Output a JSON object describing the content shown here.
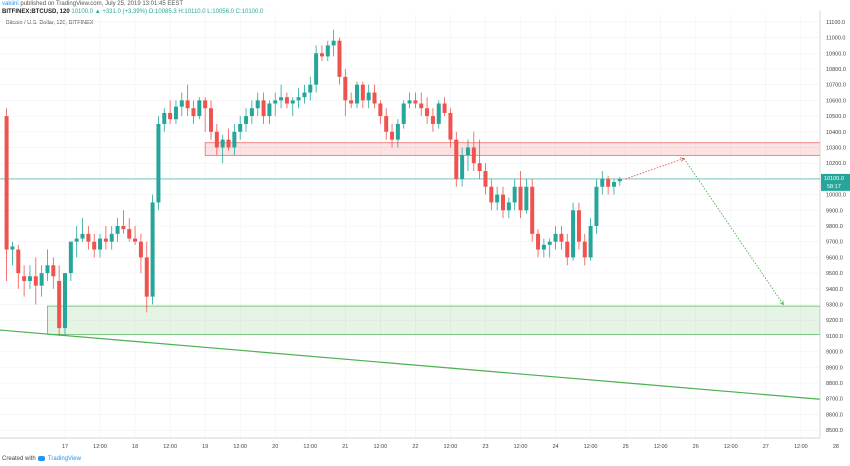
{
  "header": {
    "author": "vakiini",
    "published": "published on TradingView.com, July 25, 2019 13:01:45 EEST",
    "symbol": "BITFINEX:BTCUSD, 120",
    "ohlc": "10100.0 ▲ +331.0 (+3.39%) O:10085.3 H:10110.0 L:10056.0 C:10100.0"
  },
  "footer": {
    "created_with": "Created with",
    "brand": "TradingView"
  },
  "chart_data": {
    "type": "candlestick",
    "title": "Bitcoin / U.S. Dollar, 120, BITFINEX",
    "ylim": [
      8450,
      11150
    ],
    "y_ticks": [
      8500,
      8600,
      8700,
      8800,
      8900,
      9000,
      9100,
      9200,
      9300,
      9400,
      9500,
      9600,
      9700,
      9800,
      9900,
      10000,
      10100,
      10200,
      10300,
      10400,
      10500,
      10600,
      10700,
      10800,
      10900,
      11000,
      11100
    ],
    "x_ticks": [
      {
        "label": "17",
        "t": 10
      },
      {
        "label": "12:00",
        "t": 16
      },
      {
        "label": "18",
        "t": 22
      },
      {
        "label": "12:00",
        "t": 28
      },
      {
        "label": "19",
        "t": 34
      },
      {
        "label": "12:00",
        "t": 40
      },
      {
        "label": "20",
        "t": 46
      },
      {
        "label": "12:00",
        "t": 52
      },
      {
        "label": "21",
        "t": 58
      },
      {
        "label": "12:00",
        "t": 64
      },
      {
        "label": "22",
        "t": 70
      },
      {
        "label": "12:00",
        "t": 76
      },
      {
        "label": "23",
        "t": 82
      },
      {
        "label": "12:00",
        "t": 88
      },
      {
        "label": "24",
        "t": 94
      },
      {
        "label": "12:00",
        "t": 100
      },
      {
        "label": "25",
        "t": 106
      },
      {
        "label": "12:00",
        "t": 112
      },
      {
        "label": "26",
        "t": 118
      },
      {
        "label": "12:00",
        "t": 124
      },
      {
        "label": "27",
        "t": 130
      },
      {
        "label": "12:00",
        "t": 136
      },
      {
        "label": "28",
        "t": 142
      }
    ],
    "last_price": {
      "value": 10100.0,
      "label": "10100.0",
      "countdown": "58:17"
    },
    "colors": {
      "up": "#26a69a",
      "down": "#ef5350",
      "resistance": "#ef5350",
      "support": "#4caf50",
      "trendline": "#4caf50",
      "projection_up": "#ef5350",
      "projection_down": "#4caf50",
      "price_line": "#26a69a"
    },
    "candles": [
      [
        0,
        10500,
        10550,
        9450,
        9650
      ],
      [
        1,
        9650,
        9700,
        9550,
        9670
      ],
      [
        2,
        9650,
        9680,
        9400,
        9500
      ],
      [
        3,
        9480,
        9550,
        9350,
        9450
      ],
      [
        4,
        9450,
        9550,
        9400,
        9480
      ],
      [
        5,
        9480,
        9600,
        9300,
        9420
      ],
      [
        6,
        9420,
        9550,
        9350,
        9500
      ],
      [
        7,
        9500,
        9650,
        9450,
        9550
      ],
      [
        8,
        9550,
        9600,
        9400,
        9480
      ],
      [
        9,
        9450,
        9550,
        9100,
        9150
      ],
      [
        10,
        9150,
        9500,
        9100,
        9500
      ],
      [
        11,
        9500,
        9700,
        9450,
        9700
      ],
      [
        12,
        9700,
        9800,
        9600,
        9720
      ],
      [
        13,
        9720,
        9850,
        9700,
        9750
      ],
      [
        14,
        9750,
        9800,
        9650,
        9700
      ],
      [
        15,
        9700,
        9750,
        9600,
        9650
      ],
      [
        16,
        9650,
        9750,
        9600,
        9720
      ],
      [
        17,
        9720,
        9800,
        9650,
        9700
      ],
      [
        18,
        9700,
        9800,
        9650,
        9750
      ],
      [
        19,
        9750,
        9850,
        9700,
        9800
      ],
      [
        20,
        9800,
        9900,
        9750,
        9780
      ],
      [
        21,
        9780,
        9850,
        9700,
        9720
      ],
      [
        22,
        9720,
        9800,
        9680,
        9700
      ],
      [
        23,
        9700,
        9750,
        9500,
        9600
      ],
      [
        24,
        9600,
        9700,
        9250,
        9350
      ],
      [
        25,
        9350,
        10000,
        9300,
        9950
      ],
      [
        26,
        9950,
        10500,
        9900,
        10450
      ],
      [
        27,
        10450,
        10550,
        10400,
        10520
      ],
      [
        28,
        10520,
        10600,
        10450,
        10480
      ],
      [
        29,
        10480,
        10600,
        10450,
        10560
      ],
      [
        30,
        10560,
        10650,
        10500,
        10600
      ],
      [
        31,
        10600,
        10700,
        10500,
        10550
      ],
      [
        32,
        10550,
        10600,
        10450,
        10500
      ],
      [
        33,
        10500,
        10620,
        10480,
        10600
      ],
      [
        34,
        10600,
        10620,
        10400,
        10550
      ],
      [
        35,
        10550,
        10600,
        10350,
        10400
      ],
      [
        36,
        10400,
        10450,
        10250,
        10300
      ],
      [
        37,
        10300,
        10380,
        10200,
        10350
      ],
      [
        38,
        10350,
        10420,
        10280,
        10300
      ],
      [
        39,
        10300,
        10450,
        10250,
        10400
      ],
      [
        40,
        10400,
        10500,
        10350,
        10450
      ],
      [
        41,
        10450,
        10550,
        10400,
        10500
      ],
      [
        42,
        10500,
        10600,
        10450,
        10550
      ],
      [
        43,
        10550,
        10650,
        10500,
        10600
      ],
      [
        44,
        10600,
        10650,
        10450,
        10500
      ],
      [
        45,
        10500,
        10600,
        10450,
        10580
      ],
      [
        46,
        10580,
        10650,
        10500,
        10600
      ],
      [
        47,
        10600,
        10700,
        10550,
        10620
      ],
      [
        48,
        10620,
        10650,
        10550,
        10580
      ],
      [
        49,
        10580,
        10620,
        10500,
        10600
      ],
      [
        50,
        10600,
        10680,
        10550,
        10620
      ],
      [
        51,
        10620,
        10700,
        10580,
        10650
      ],
      [
        52,
        10650,
        10750,
        10600,
        10700
      ],
      [
        53,
        10700,
        10950,
        10650,
        10900
      ],
      [
        54,
        10900,
        10950,
        10850,
        10880
      ],
      [
        55,
        10880,
        10980,
        10850,
        10950
      ],
      [
        56,
        10950,
        11050,
        10880,
        10980
      ],
      [
        57,
        10980,
        11000,
        10700,
        10750
      ],
      [
        58,
        10750,
        10800,
        10500,
        10600
      ],
      [
        59,
        10600,
        10650,
        10550,
        10580
      ],
      [
        60,
        10580,
        10720,
        10550,
        10700
      ],
      [
        61,
        10700,
        10720,
        10550,
        10600
      ],
      [
        62,
        10600,
        10700,
        10550,
        10650
      ],
      [
        63,
        10650,
        10700,
        10550,
        10580
      ],
      [
        64,
        10580,
        10600,
        10450,
        10500
      ],
      [
        65,
        10500,
        10550,
        10350,
        10400
      ],
      [
        66,
        10400,
        10450,
        10300,
        10350
      ],
      [
        67,
        10350,
        10480,
        10300,
        10450
      ],
      [
        68,
        10450,
        10600,
        10420,
        10580
      ],
      [
        69,
        10580,
        10650,
        10550,
        10600
      ],
      [
        70,
        10600,
        10650,
        10550,
        10580
      ],
      [
        71,
        10580,
        10650,
        10500,
        10550
      ],
      [
        72,
        10550,
        10620,
        10450,
        10500
      ],
      [
        73,
        10500,
        10550,
        10400,
        10450
      ],
      [
        74,
        10450,
        10600,
        10420,
        10580
      ],
      [
        75,
        10580,
        10620,
        10500,
        10520
      ],
      [
        76,
        10520,
        10550,
        10300,
        10350
      ],
      [
        77,
        10350,
        10400,
        10050,
        10100
      ],
      [
        78,
        10100,
        10300,
        10050,
        10250
      ],
      [
        79,
        10250,
        10350,
        10150,
        10300
      ],
      [
        80,
        10300,
        10400,
        10150,
        10200
      ],
      [
        81,
        10200,
        10350,
        10100,
        10150
      ],
      [
        82,
        10150,
        10200,
        10000,
        10050
      ],
      [
        83,
        10050,
        10100,
        9900,
        9950
      ],
      [
        84,
        9950,
        10050,
        9900,
        10000
      ],
      [
        85,
        10000,
        10050,
        9850,
        9900
      ],
      [
        86,
        9900,
        9980,
        9850,
        9950
      ],
      [
        87,
        9950,
        10100,
        9900,
        10050
      ],
      [
        88,
        10050,
        10150,
        9850,
        9900
      ],
      [
        89,
        9900,
        10100,
        9880,
        10050
      ],
      [
        90,
        10050,
        10100,
        9700,
        9750
      ],
      [
        91,
        9750,
        9780,
        9600,
        9650
      ],
      [
        92,
        9650,
        9720,
        9600,
        9680
      ],
      [
        93,
        9680,
        9720,
        9600,
        9700
      ],
      [
        94,
        9700,
        9800,
        9650,
        9750
      ],
      [
        95,
        9750,
        9800,
        9650,
        9700
      ],
      [
        96,
        9700,
        9750,
        9550,
        9600
      ],
      [
        97,
        9600,
        9950,
        9580,
        9900
      ],
      [
        98,
        9900,
        9950,
        9650,
        9700
      ],
      [
        99,
        9700,
        9750,
        9550,
        9600
      ],
      [
        100,
        9600,
        9850,
        9580,
        9800
      ],
      [
        101,
        9800,
        10100,
        9750,
        10050
      ],
      [
        102,
        10050,
        10150,
        10000,
        10100
      ],
      [
        103,
        10100,
        10120,
        10000,
        10050
      ],
      [
        104,
        10050,
        10100,
        10000,
        10080
      ],
      [
        105,
        10085,
        10110,
        10056,
        10100
      ]
    ],
    "annotations": {
      "resistance_zone": {
        "t_start": 34,
        "t_end": 166,
        "y_low": 10250,
        "y_high": 10330
      },
      "support_zone": {
        "t_start": 7,
        "t_end": 180,
        "y_low": 9110,
        "y_high": 9290
      },
      "trendline": {
        "t1": -2,
        "y1": 9140,
        "t2": 151,
        "y2": 8660
      },
      "projection_up": {
        "t1": 106,
        "y1": 10100,
        "t2": 116,
        "y2": 10230
      },
      "projection_down": {
        "t1": 116,
        "y1": 10230,
        "t2": 133,
        "y2": 9300
      }
    }
  }
}
